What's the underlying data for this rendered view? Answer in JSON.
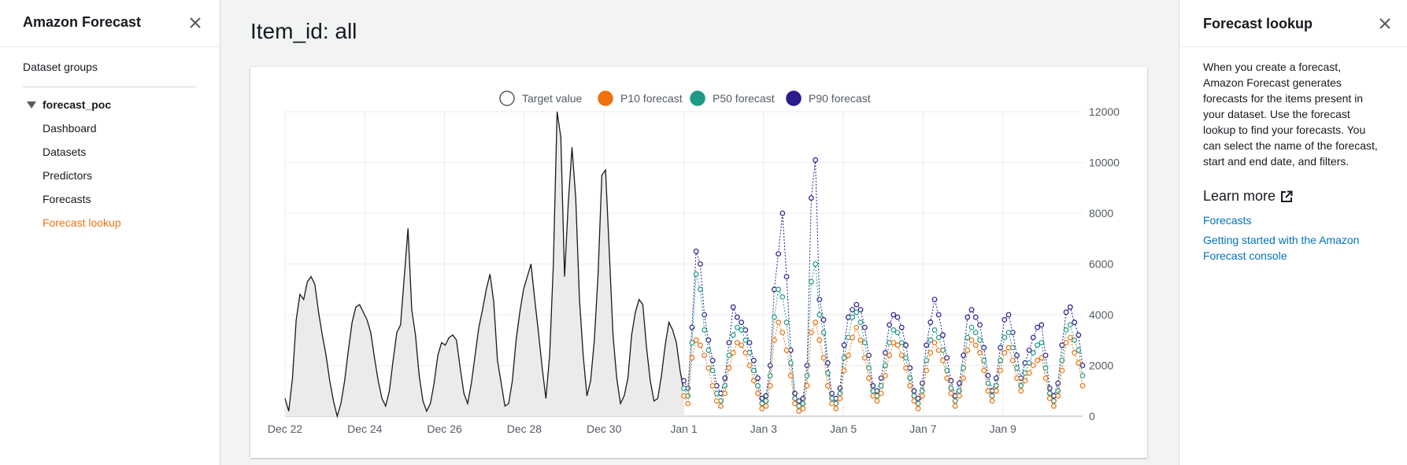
{
  "left_nav": {
    "title": "Amazon Forecast",
    "dataset_groups": "Dataset groups",
    "group_name": "forecast_poc",
    "items": [
      {
        "label": "Dashboard",
        "active": false
      },
      {
        "label": "Datasets",
        "active": false
      },
      {
        "label": "Predictors",
        "active": false
      },
      {
        "label": "Forecasts",
        "active": false
      },
      {
        "label": "Forecast lookup",
        "active": true
      }
    ]
  },
  "main": {
    "title": "Item_id: all"
  },
  "chart_data": {
    "type": "line",
    "x_tick_labels": [
      "Dec 22",
      "Dec 24",
      "Dec 26",
      "Dec 28",
      "Dec 30",
      "Jan 1",
      "Jan 3",
      "Jan 5",
      "Jan 7",
      "Jan 9"
    ],
    "y_ticks": [
      0,
      2000,
      4000,
      6000,
      8000,
      10000,
      12000
    ],
    "ylim": [
      0,
      12000
    ],
    "y_axis_side": "right",
    "legend_position": "top-center",
    "grid": true,
    "series": [
      {
        "name": "Target value",
        "color": "#16191f",
        "fill": "#ebebeb",
        "x_start_day": 0,
        "x_end_day": 10,
        "values": [
          700,
          200,
          1500,
          3800,
          4800,
          4600,
          5300,
          5500,
          5200,
          4100,
          3200,
          2400,
          1400,
          600,
          0,
          500,
          1400,
          2600,
          3700,
          4300,
          4400,
          4100,
          3800,
          3300,
          2300,
          1400,
          700,
          400,
          1000,
          2200,
          3300,
          3600,
          5500,
          7400,
          4200,
          3200,
          1600,
          600,
          200,
          500,
          1300,
          2400,
          2900,
          2800,
          3100,
          3200,
          3000,
          1900,
          900,
          500,
          1300,
          2400,
          3500,
          4200,
          5000,
          5600,
          4500,
          2200,
          1300,
          400,
          500,
          1400,
          3000,
          4100,
          5000,
          5500,
          6000,
          4600,
          3300,
          1900,
          700,
          2400,
          6000,
          12000,
          11000,
          5500,
          8400,
          10600,
          8600,
          4600,
          2400,
          800,
          1400,
          3000,
          5600,
          9500,
          9700,
          6500,
          3200,
          1500,
          500,
          800,
          1500,
          3200,
          4100,
          4600,
          4400,
          2700,
          1400,
          600,
          700,
          1600,
          2800,
          3700,
          3400,
          2900,
          1800,
          1000
        ]
      },
      {
        "name": "P10 forecast",
        "color": "#ec7211",
        "x_start_day": 10,
        "x_end_day": 20,
        "values": [
          800,
          500,
          2300,
          3000,
          2800,
          2400,
          1900,
          1200,
          600,
          400,
          900,
          1900,
          2500,
          2900,
          2800,
          2500,
          2000,
          1400,
          900,
          300,
          400,
          1200,
          3000,
          3700,
          3300,
          2600,
          1600,
          500,
          200,
          300,
          1200,
          3300,
          3700,
          3000,
          2300,
          1200,
          500,
          300,
          700,
          1800,
          2400,
          3100,
          3500,
          3000,
          2300,
          1500,
          800,
          600,
          900,
          1600,
          2400,
          2900,
          2800,
          2400,
          1900,
          1200,
          600,
          300,
          800,
          1800,
          2500,
          2900,
          2600,
          2200,
          1500,
          900,
          400,
          800,
          1500,
          2600,
          3000,
          2800,
          2500,
          1800,
          1000,
          600,
          1000,
          1800,
          2500,
          2700,
          2200,
          1500,
          1000,
          1400,
          1700,
          2000,
          2200,
          2300,
          1500,
          700,
          400,
          800,
          1800,
          2900,
          3100,
          2500,
          2100,
          1200
        ]
      },
      {
        "name": "P50 forecast",
        "color": "#1e9a86",
        "x_start_day": 10,
        "x_end_day": 20,
        "values": [
          1100,
          800,
          2900,
          5600,
          5000,
          3400,
          2600,
          1800,
          900,
          600,
          1200,
          2400,
          3200,
          3500,
          3400,
          3000,
          2500,
          1800,
          1200,
          500,
          600,
          1600,
          3900,
          5000,
          4700,
          3700,
          2100,
          700,
          400,
          500,
          1600,
          5300,
          6000,
          4000,
          3300,
          1700,
          700,
          500,
          900,
          2300,
          3100,
          3900,
          4100,
          3700,
          2900,
          1900,
          1000,
          800,
          1200,
          2000,
          2900,
          3400,
          3300,
          2900,
          2300,
          1500,
          800,
          500,
          1000,
          2200,
          3000,
          3400,
          3100,
          2600,
          1800,
          1100,
          600,
          1000,
          1900,
          3100,
          3500,
          3300,
          3000,
          2200,
          1300,
          800,
          1200,
          2200,
          3100,
          3300,
          2700,
          1900,
          1200,
          1700,
          2100,
          2500,
          2800,
          2900,
          1900,
          900,
          600,
          1000,
          2200,
          3400,
          3600,
          3000,
          2600,
          1600
        ]
      },
      {
        "name": "P90 forecast",
        "color": "#2b1c8c",
        "x_start_day": 10,
        "x_end_day": 20,
        "values": [
          1400,
          1100,
          3500,
          6500,
          6000,
          4000,
          3000,
          2200,
          1200,
          900,
          1500,
          2900,
          4300,
          3900,
          3700,
          3400,
          2900,
          2200,
          1500,
          700,
          800,
          2000,
          5000,
          6400,
          8000,
          5500,
          2600,
          900,
          600,
          700,
          2000,
          8600,
          10100,
          4600,
          3800,
          2100,
          900,
          700,
          1100,
          2800,
          3900,
          4200,
          4400,
          4200,
          3500,
          2400,
          1200,
          1000,
          1500,
          2500,
          3600,
          4000,
          3900,
          3500,
          2800,
          1900,
          1000,
          700,
          1300,
          2800,
          3700,
          4600,
          4000,
          3200,
          2300,
          1400,
          800,
          1300,
          2400,
          3900,
          4200,
          3900,
          3600,
          2700,
          1600,
          1000,
          1500,
          2700,
          3800,
          4000,
          3300,
          2400,
          1500,
          2100,
          2600,
          3100,
          3500,
          3600,
          2400,
          1100,
          800,
          1300,
          2800,
          4100,
          4300,
          3700,
          3200,
          2000
        ]
      }
    ]
  },
  "right_panel": {
    "title": "Forecast lookup",
    "body_lines": [
      "When you create a forecast,",
      "Amazon Forecast generates",
      "forecasts for the items present in",
      "your dataset. Use the forecast",
      "lookup to find your forecasts. You",
      "can select the name of the forecast,",
      "start and end date, and filters."
    ],
    "learn_more": "Learn more",
    "links": [
      {
        "lines": [
          "Forecasts"
        ]
      },
      {
        "lines": [
          "Getting started with the Amazon",
          "Forecast console"
        ]
      }
    ]
  }
}
